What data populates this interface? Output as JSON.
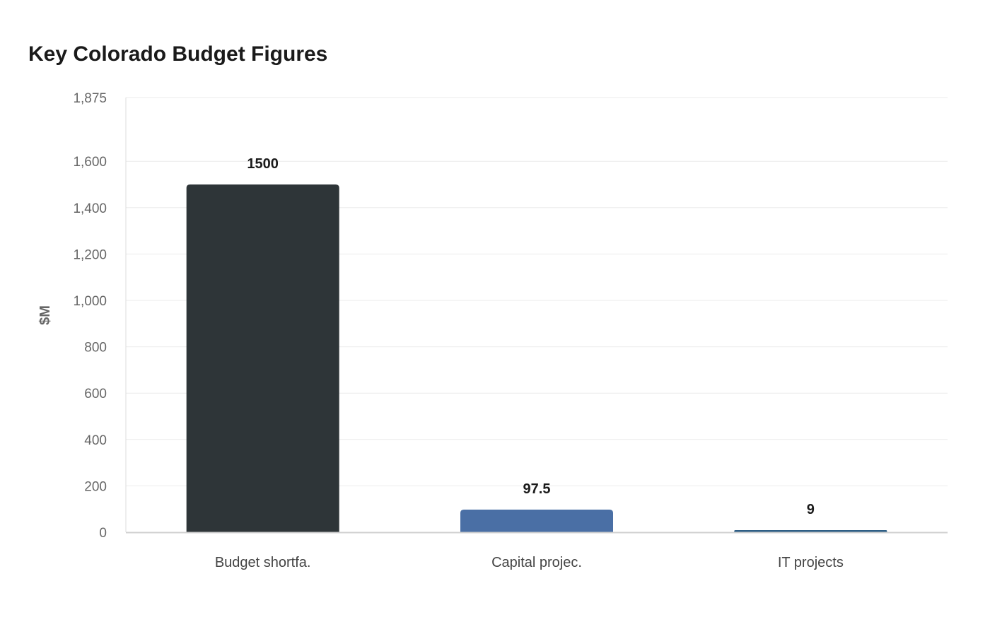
{
  "chart_data": {
    "type": "bar",
    "title": "Key Colorado Budget Figures",
    "xlabel": "",
    "ylabel": "$M",
    "categories": [
      "Budget shortfa.",
      "Capital projec.",
      "IT projects"
    ],
    "values": [
      1500,
      97.5,
      9
    ],
    "data_labels": [
      "1500",
      "97.5",
      "9"
    ],
    "colors": [
      "#2e3538",
      "#4a6fa5",
      "#2f5f86"
    ],
    "ylim": [
      0,
      1875
    ],
    "yticks": [
      0,
      200,
      400,
      600,
      800,
      1000,
      1200,
      1400,
      1600,
      1875
    ],
    "ytick_labels": [
      "0",
      "200",
      "400",
      "600",
      "800",
      "1,000",
      "1,200",
      "1,400",
      "1,600",
      "1,875"
    ],
    "grid": true,
    "legend": "none"
  }
}
